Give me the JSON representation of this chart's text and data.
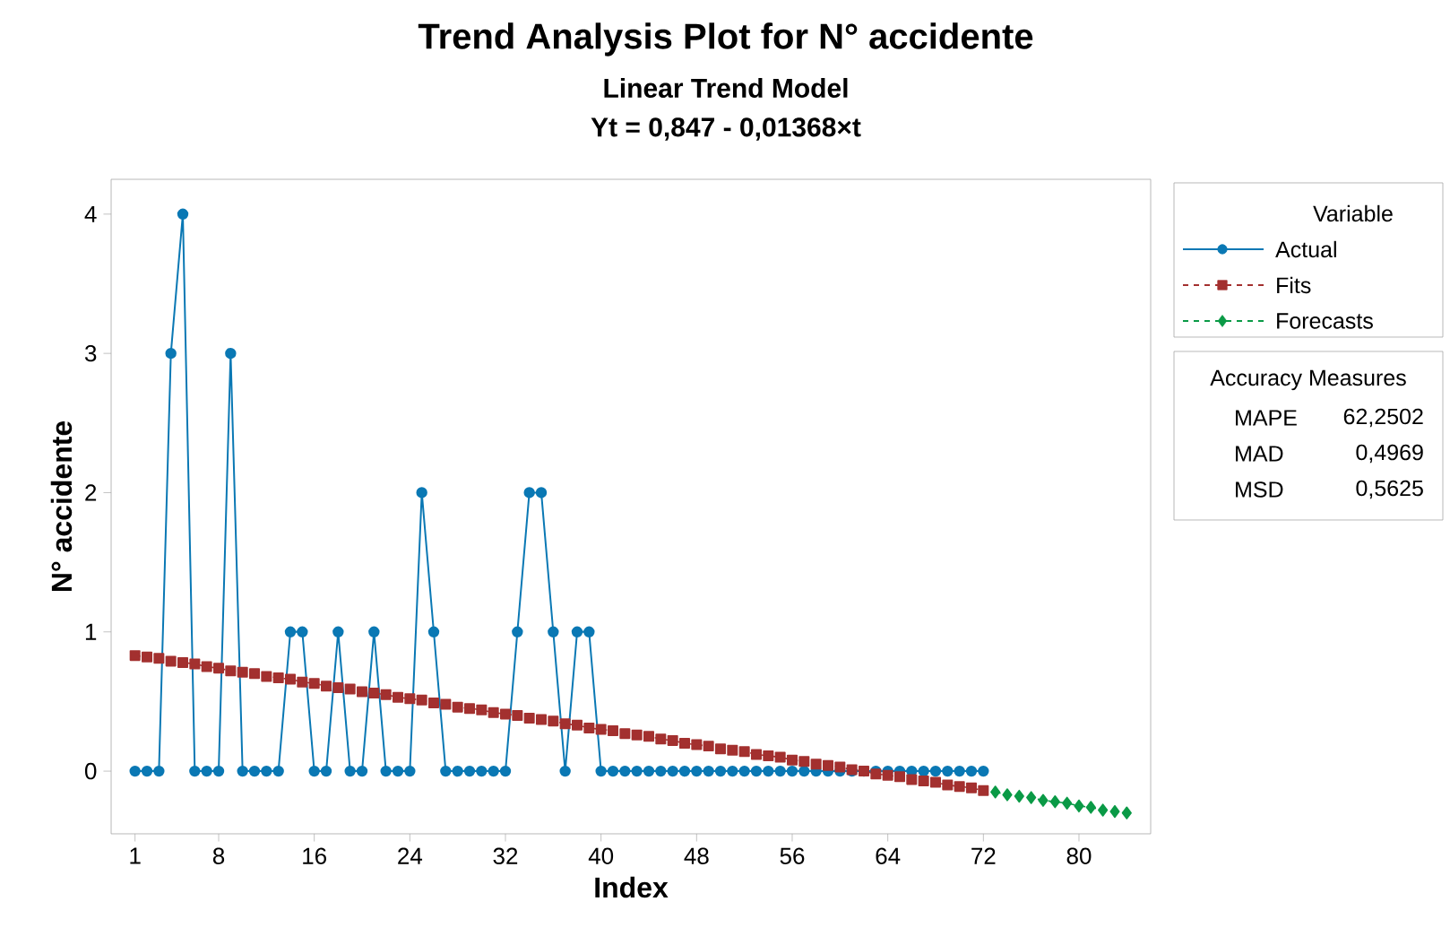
{
  "chart_data": {
    "type": "line",
    "title": "Trend Analysis Plot for N° accidente",
    "subtitle": "Linear Trend Model",
    "xlabel": "Index",
    "ylabel": "N° accidente",
    "legend_title": "Variable",
    "legend": "right",
    "grid": false,
    "xlim": [
      -1,
      86
    ],
    "ylim": [
      -0.45,
      4.25
    ],
    "xticks": [
      1,
      8,
      16,
      24,
      32,
      40,
      48,
      56,
      64,
      72,
      80
    ],
    "yticks": [
      0,
      1,
      2,
      3,
      4
    ],
    "annotations": [
      "Yt = 0,847 - 0,01368×t",
      "Accuracy Measures",
      "MAPE",
      "62,2502",
      "MAD",
      "0,4969",
      "MSD",
      "0,5625"
    ],
    "series": [
      {
        "name": "Actual",
        "color": "#0a78b4",
        "marker": "circle",
        "line_style": "solid",
        "x": [
          1,
          2,
          3,
          4,
          5,
          6,
          7,
          8,
          9,
          10,
          11,
          12,
          13,
          14,
          15,
          16,
          17,
          18,
          19,
          20,
          21,
          22,
          23,
          24,
          25,
          26,
          27,
          28,
          29,
          30,
          31,
          32,
          33,
          34,
          35,
          36,
          37,
          38,
          39,
          40,
          41,
          42,
          43,
          44,
          45,
          46,
          47,
          48,
          49,
          50,
          51,
          52,
          53,
          54,
          55,
          56,
          57,
          58,
          59,
          60,
          61,
          62,
          63,
          64,
          65,
          66,
          67,
          68,
          69,
          70,
          71,
          72
        ],
        "values": [
          0,
          0,
          0,
          3,
          4,
          0,
          0,
          0,
          3,
          0,
          0,
          0,
          0,
          1,
          1,
          0,
          0,
          1,
          0,
          0,
          1,
          0,
          0,
          0,
          2,
          1,
          0,
          0,
          0,
          0,
          0,
          0,
          1,
          2,
          2,
          1,
          0,
          1,
          1,
          0,
          0,
          0,
          0,
          0,
          0,
          0,
          0,
          0,
          0,
          0,
          0,
          0,
          0,
          0,
          0,
          0,
          0,
          0,
          0,
          0,
          0,
          0,
          0,
          0,
          0,
          0,
          0,
          0,
          0,
          0,
          0,
          0
        ]
      },
      {
        "name": "Fits",
        "color": "#a3302f",
        "marker": "square",
        "line_style": "dashed",
        "x": [
          1,
          2,
          3,
          4,
          5,
          6,
          7,
          8,
          9,
          10,
          11,
          12,
          13,
          14,
          15,
          16,
          17,
          18,
          19,
          20,
          21,
          22,
          23,
          24,
          25,
          26,
          27,
          28,
          29,
          30,
          31,
          32,
          33,
          34,
          35,
          36,
          37,
          38,
          39,
          40,
          41,
          42,
          43,
          44,
          45,
          46,
          47,
          48,
          49,
          50,
          51,
          52,
          53,
          54,
          55,
          56,
          57,
          58,
          59,
          60,
          61,
          62,
          63,
          64,
          65,
          66,
          67,
          68,
          69,
          70,
          71,
          72
        ],
        "values": [
          0.83,
          0.82,
          0.81,
          0.79,
          0.78,
          0.77,
          0.75,
          0.74,
          0.72,
          0.71,
          0.7,
          0.68,
          0.67,
          0.66,
          0.64,
          0.63,
          0.61,
          0.6,
          0.59,
          0.57,
          0.56,
          0.55,
          0.53,
          0.52,
          0.51,
          0.49,
          0.48,
          0.46,
          0.45,
          0.44,
          0.42,
          0.41,
          0.4,
          0.38,
          0.37,
          0.36,
          0.34,
          0.33,
          0.31,
          0.3,
          0.29,
          0.27,
          0.26,
          0.25,
          0.23,
          0.22,
          0.2,
          0.19,
          0.18,
          0.16,
          0.15,
          0.14,
          0.12,
          0.11,
          0.1,
          0.08,
          0.07,
          0.05,
          0.04,
          0.03,
          0.01,
          0,
          -0.02,
          -0.03,
          -0.04,
          -0.06,
          -0.07,
          -0.08,
          -0.1,
          -0.11,
          -0.12,
          -0.14
        ]
      },
      {
        "name": "Forecasts",
        "color": "#0a9a46",
        "marker": "diamond",
        "line_style": "dashed",
        "x": [
          73,
          74,
          75,
          76,
          77,
          78,
          79,
          80,
          81,
          82,
          83,
          84
        ],
        "values": [
          -0.15,
          -0.17,
          -0.18,
          -0.19,
          -0.21,
          -0.22,
          -0.23,
          -0.25,
          -0.26,
          -0.28,
          -0.29,
          -0.3
        ]
      }
    ]
  }
}
